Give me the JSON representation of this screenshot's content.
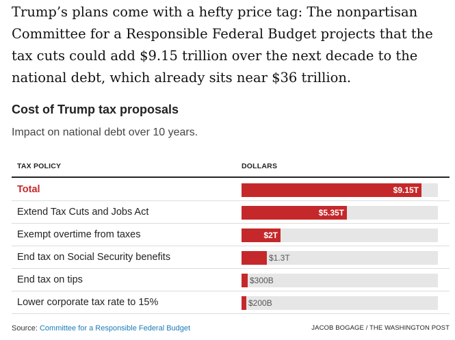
{
  "intro_text": "Trump’s plans come with a hefty price tag: The nonpartisan Committee for a Responsible Federal Budget projects that the tax cuts could add $9.15 trillion over the next decade to the national debt, which already sits near $36 trillion.",
  "colors": {
    "bar": "#c5282a",
    "track": "#e6e6e6",
    "link": "#1a7bb8"
  },
  "chart_data": {
    "type": "bar",
    "orientation": "horizontal",
    "title": "Cost of Trump tax proposals",
    "subtitle": "Impact on national debt over 10 years.",
    "column_headers": {
      "category": "TAX POLICY",
      "value": "DOLLARS"
    },
    "xlim": [
      0,
      10
    ],
    "value_unit": "trillion dollars",
    "rows": [
      {
        "label": "Total",
        "value": 9.15,
        "display": "$9.15T",
        "highlight": true
      },
      {
        "label": "Extend Tax Cuts and Jobs Act",
        "value": 5.35,
        "display": "$5.35T"
      },
      {
        "label": "Exempt overtime from taxes",
        "value": 2.0,
        "display": "$2T"
      },
      {
        "label": "End tax on Social Security benefits",
        "value": 1.3,
        "display": "$1.3T"
      },
      {
        "label": "End tax on tips",
        "value": 0.3,
        "display": "$300B"
      },
      {
        "label": "Lower corporate tax rate to 15%",
        "value": 0.2,
        "display": "$200B"
      }
    ]
  },
  "footer": {
    "source_prefix": "Source: ",
    "source_link": "Committee for a Responsible Federal Budget",
    "credit": "JACOB BOGAGE / THE WASHINGTON POST"
  }
}
